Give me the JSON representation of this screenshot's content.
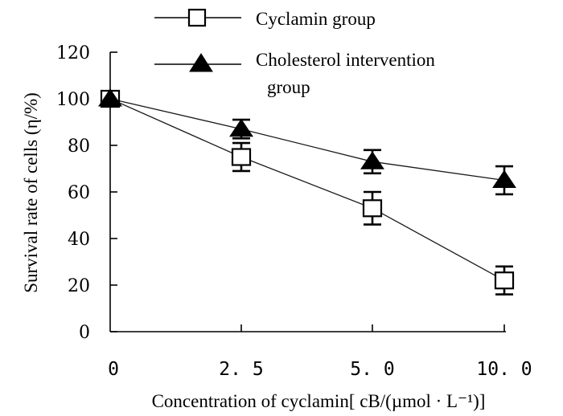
{
  "chart_data": {
    "type": "line",
    "categories": [
      "0",
      "2. 5",
      "5. 0",
      "10. 0"
    ],
    "ylim": [
      0,
      120
    ],
    "yticks": [
      "0",
      "20",
      "40",
      "60",
      "80",
      "100",
      "120"
    ],
    "ylabel": "Survival rate of cells (η/%)",
    "xlabel": "Concentration of cyclamin[ cB/(µmol · L⁻¹)]",
    "series": [
      {
        "name": "Cyclamin group",
        "marker": "square",
        "values": [
          100,
          75,
          53,
          22
        ],
        "errors": [
          0,
          6,
          7,
          6
        ]
      },
      {
        "name": "Cholesterol intervention group",
        "name_lines": [
          "Cholesterol intervention",
          "group"
        ],
        "marker": "triangle",
        "values": [
          100,
          87,
          73,
          65
        ],
        "errors": [
          0,
          4,
          5,
          6
        ]
      }
    ]
  }
}
